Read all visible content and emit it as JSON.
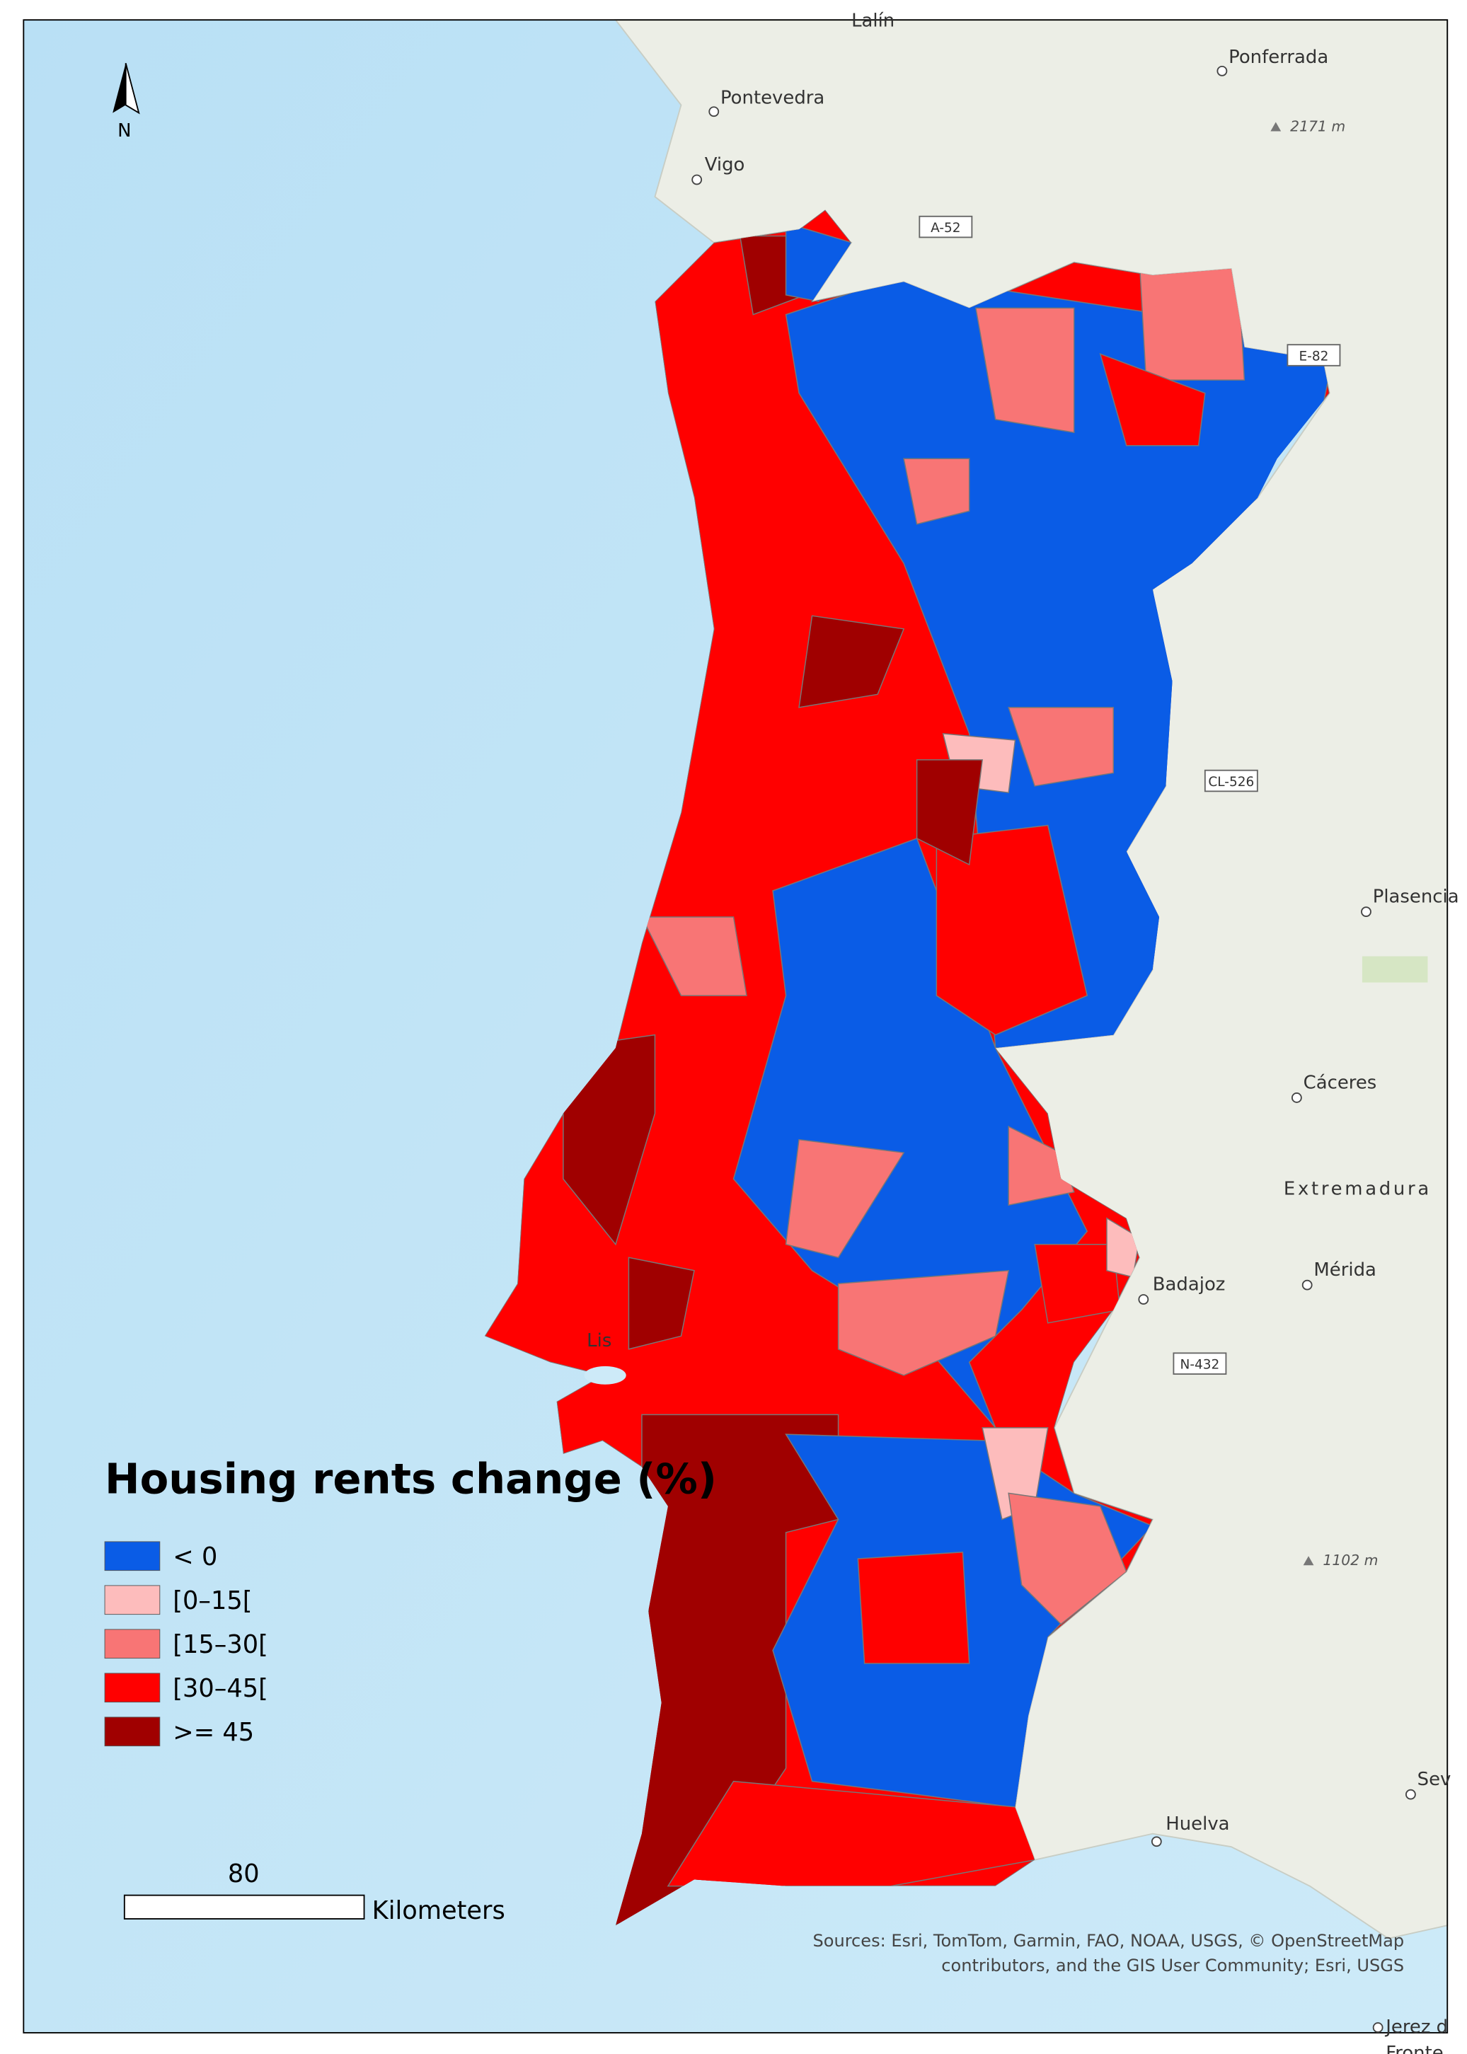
{
  "map": {
    "title": "Housing rents change (%)",
    "legend": [
      {
        "label": "< 0",
        "color": "#0a5ce6"
      },
      {
        "label": "[0–15[",
        "color": "#fdbcbc"
      },
      {
        "label": "[15–30[",
        "color": "#f87575"
      },
      {
        "label": "[30–45[",
        "color": "#ff0000"
      },
      {
        "label": ">= 45",
        "color": "#a00000"
      }
    ],
    "place_labels": [
      "Lalín",
      "Ponferrada",
      "Pontevedra",
      "Vigo",
      "Plasencia",
      "Cáceres",
      "Badajoz",
      "Mérida",
      "Huelva",
      "Sev",
      "Jerez d",
      "Fronte",
      "Lis"
    ],
    "region_labels": [
      "Extremadura"
    ],
    "road_labels": [
      "A-52",
      "E-82",
      "CL-526",
      "N-432"
    ],
    "elevation_labels": [
      "2171 m",
      "1102 m"
    ],
    "north_arrow": "N",
    "scale_bar": {
      "value": 80,
      "unit": "Kilometers"
    },
    "attribution": [
      "Sources: Esri, TomTom, Garmin, FAO, NOAA, USGS, © OpenStreetMap",
      "contributors, and the GIS User Community; Esri, USGS"
    ]
  }
}
